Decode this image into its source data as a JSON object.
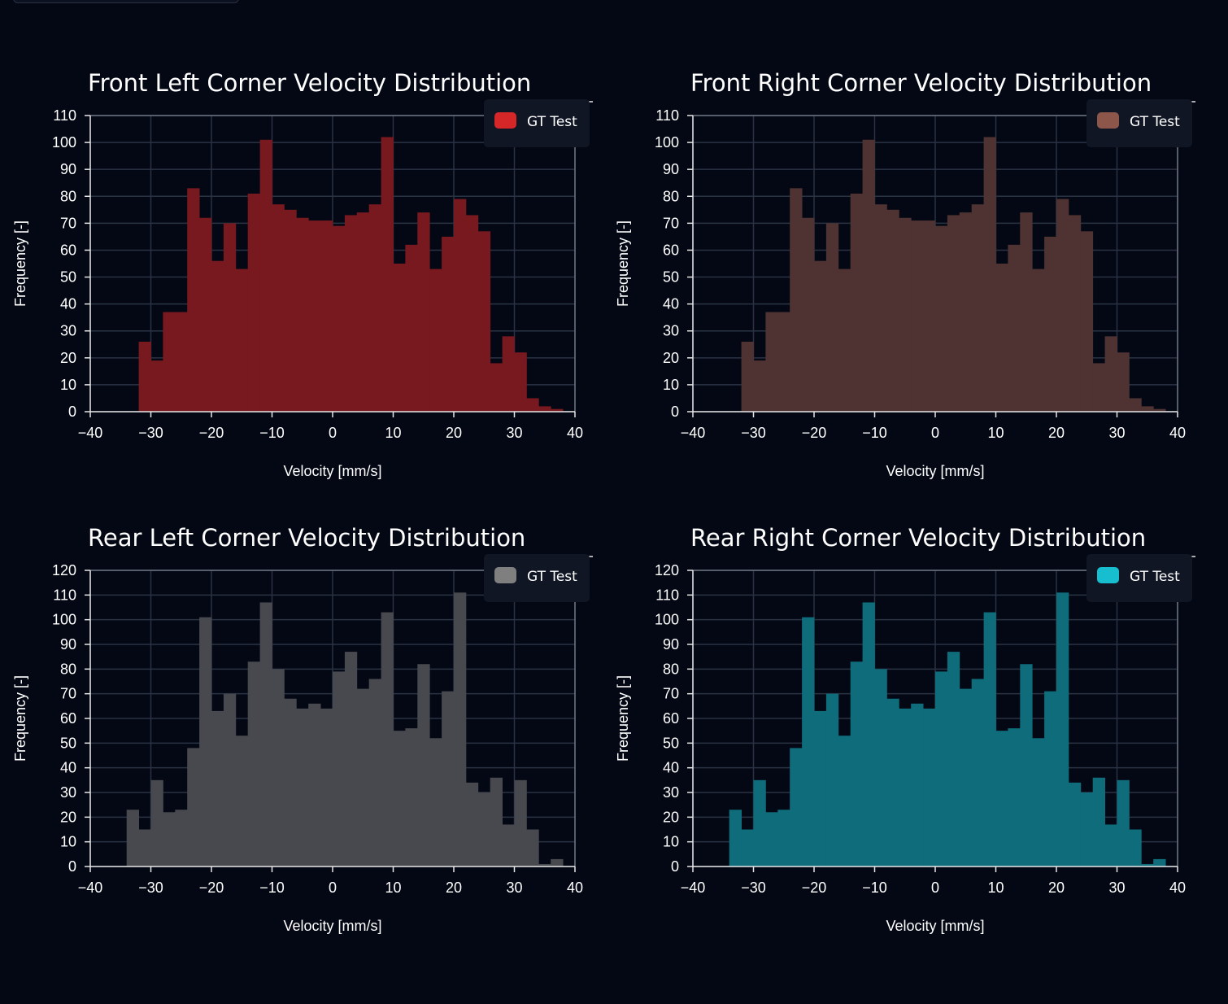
{
  "chart_data": [
    {
      "type": "histogram",
      "title": "Front Left Corner Velocity Distribution",
      "xlabel": "Velocity [mm/s]",
      "ylabel": "Frequency [-]",
      "xlim": [
        -40,
        40
      ],
      "ylim": [
        0,
        110
      ],
      "xticks": [
        -40,
        -30,
        -20,
        -10,
        0,
        10,
        20,
        30,
        40
      ],
      "xtick_labels": [
        "−40",
        "−30",
        "−20",
        "−10",
        "0",
        "10",
        "20",
        "30",
        "40"
      ],
      "yticks": [
        0,
        10,
        20,
        30,
        40,
        50,
        60,
        70,
        80,
        90,
        100,
        110
      ],
      "bin_start": -32,
      "bin_width": 2,
      "series": [
        {
          "name": "GT Test",
          "color": "#d62728",
          "values": [
            26,
            19,
            37,
            37,
            83,
            72,
            56,
            70,
            53,
            81,
            101,
            77,
            75,
            72,
            71,
            71,
            69,
            73,
            74,
            77,
            102,
            55,
            62,
            74,
            53,
            65,
            79,
            73,
            67,
            18,
            28,
            22,
            5,
            2,
            1
          ]
        }
      ],
      "legend": {
        "position": "top-right",
        "entries": [
          "GT Test"
        ]
      },
      "grid": true
    },
    {
      "type": "histogram",
      "title": "Front Right Corner Velocity Distribution",
      "xlabel": "Velocity [mm/s]",
      "ylabel": "Frequency [-]",
      "xlim": [
        -40,
        40
      ],
      "ylim": [
        0,
        110
      ],
      "xticks": [
        -40,
        -30,
        -20,
        -10,
        0,
        10,
        20,
        30,
        40
      ],
      "xtick_labels": [
        "−40",
        "−30",
        "−20",
        "−10",
        "0",
        "10",
        "20",
        "30",
        "40"
      ],
      "yticks": [
        0,
        10,
        20,
        30,
        40,
        50,
        60,
        70,
        80,
        90,
        100,
        110
      ],
      "bin_start": -32,
      "bin_width": 2,
      "series": [
        {
          "name": "GT Test",
          "color": "#8c564b",
          "values": [
            26,
            19,
            37,
            37,
            83,
            72,
            56,
            70,
            53,
            81,
            101,
            77,
            75,
            72,
            71,
            71,
            69,
            73,
            74,
            77,
            102,
            55,
            62,
            74,
            53,
            65,
            79,
            73,
            67,
            18,
            28,
            22,
            5,
            2,
            1
          ]
        }
      ],
      "legend": {
        "position": "top-right",
        "entries": [
          "GT Test"
        ]
      },
      "grid": true
    },
    {
      "type": "histogram",
      "title": "Rear Left Corner Velocity Distribution",
      "xlabel": "Velocity [mm/s]",
      "ylabel": "Frequency [-]",
      "xlim": [
        -40,
        40
      ],
      "ylim": [
        0,
        120
      ],
      "xticks": [
        -40,
        -30,
        -20,
        -10,
        0,
        10,
        20,
        30,
        40
      ],
      "xtick_labels": [
        "−40",
        "−30",
        "−20",
        "−10",
        "0",
        "10",
        "20",
        "30",
        "40"
      ],
      "yticks": [
        0,
        10,
        20,
        30,
        40,
        50,
        60,
        70,
        80,
        90,
        100,
        110,
        120
      ],
      "bin_start": -34,
      "bin_width": 2,
      "series": [
        {
          "name": "GT Test",
          "color": "#7f7f7f",
          "values": [
            23,
            15,
            35,
            22,
            23,
            48,
            101,
            63,
            70,
            53,
            83,
            107,
            80,
            68,
            64,
            66,
            64,
            79,
            87,
            72,
            76,
            103,
            55,
            56,
            82,
            52,
            71,
            111,
            34,
            30,
            36,
            17,
            35,
            15,
            1,
            3
          ]
        }
      ],
      "legend": {
        "position": "top-right",
        "entries": [
          "GT Test"
        ]
      },
      "grid": true
    },
    {
      "type": "histogram",
      "title": "Rear Right Corner Velocity Distribution",
      "xlabel": "Velocity [mm/s]",
      "ylabel": "Frequency [-]",
      "xlim": [
        -40,
        40
      ],
      "ylim": [
        0,
        120
      ],
      "xticks": [
        -40,
        -30,
        -20,
        -10,
        0,
        10,
        20,
        30,
        40
      ],
      "xtick_labels": [
        "−40",
        "−30",
        "−20",
        "−10",
        "0",
        "10",
        "20",
        "30",
        "40"
      ],
      "yticks": [
        0,
        10,
        20,
        30,
        40,
        50,
        60,
        70,
        80,
        90,
        100,
        110,
        120
      ],
      "bin_start": -34,
      "bin_width": 2,
      "series": [
        {
          "name": "GT Test",
          "color": "#17becf",
          "values": [
            23,
            15,
            35,
            22,
            23,
            48,
            101,
            63,
            70,
            53,
            83,
            107,
            80,
            68,
            64,
            66,
            64,
            79,
            87,
            72,
            76,
            103,
            55,
            56,
            82,
            52,
            71,
            111,
            34,
            30,
            36,
            17,
            35,
            15,
            1,
            3
          ]
        }
      ],
      "legend": {
        "position": "top-right",
        "entries": [
          "GT Test"
        ]
      },
      "grid": true
    }
  ]
}
